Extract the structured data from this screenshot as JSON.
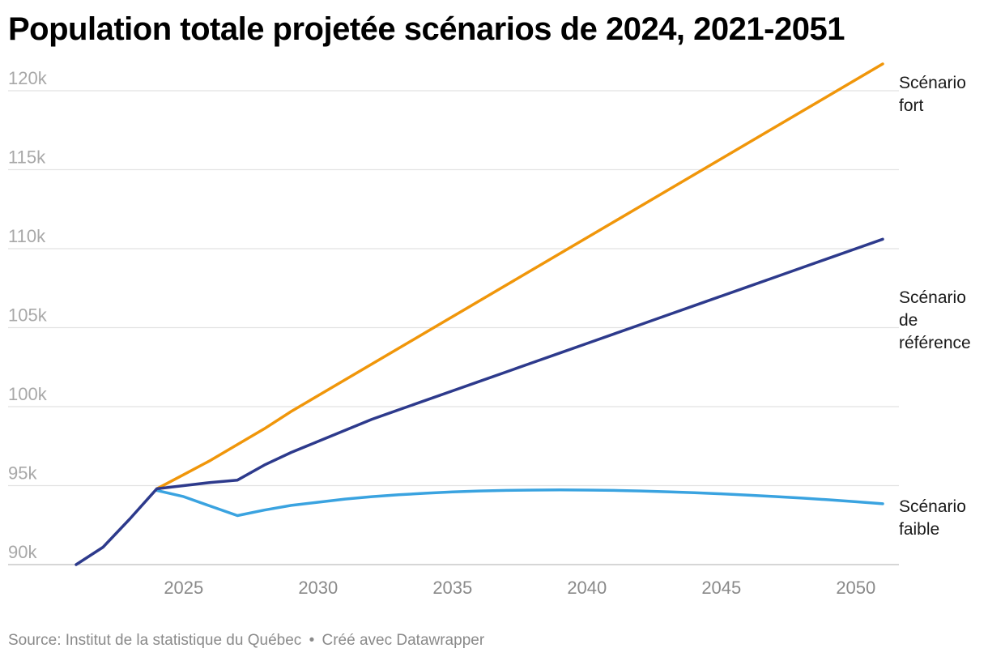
{
  "chart_data": {
    "type": "line",
    "title": "Population totale projetée scénarios de 2024, 2021-2051",
    "xlabel": "",
    "ylabel": "",
    "xlim": [
      2021,
      2051
    ],
    "ylim": [
      90000,
      120000
    ],
    "x_ticks": [
      2025,
      2030,
      2035,
      2040,
      2045,
      2050
    ],
    "x_tick_labels": [
      "2025",
      "2030",
      "2035",
      "2040",
      "2045",
      "2050"
    ],
    "y_ticks": [
      90000,
      95000,
      100000,
      105000,
      110000,
      115000,
      120000
    ],
    "y_tick_labels": [
      "90k",
      "95k",
      "100k",
      "105k",
      "110k",
      "115k",
      "120k"
    ],
    "grid": true,
    "legend": "direct labels at line ends (right)",
    "series": [
      {
        "name": "Scénario fort",
        "label_lines": [
          "Scénario",
          "fort"
        ],
        "color": "#f0960a",
        "points": [
          [
            2024,
            94800
          ],
          [
            2025,
            95700
          ],
          [
            2026,
            96600
          ],
          [
            2027,
            97600
          ],
          [
            2028,
            98600
          ],
          [
            2029,
            99700
          ],
          [
            2030,
            100700
          ],
          [
            2031,
            101700
          ],
          [
            2032,
            102700
          ],
          [
            2033,
            103700
          ],
          [
            2034,
            104700
          ],
          [
            2035,
            105700
          ],
          [
            2036,
            106700
          ],
          [
            2037,
            107700
          ],
          [
            2038,
            108700
          ],
          [
            2039,
            109700
          ],
          [
            2040,
            110700
          ],
          [
            2041,
            111700
          ],
          [
            2042,
            112700
          ],
          [
            2043,
            113700
          ],
          [
            2044,
            114700
          ],
          [
            2045,
            115700
          ],
          [
            2046,
            116700
          ],
          [
            2047,
            117700
          ],
          [
            2048,
            118700
          ],
          [
            2049,
            119700
          ],
          [
            2050,
            120700
          ],
          [
            2051,
            121700
          ]
        ]
      },
      {
        "name": "Scénario de référence",
        "label_lines": [
          "Scénario",
          "de",
          "référence"
        ],
        "color": "#2d3a8c",
        "points": [
          [
            2021,
            90000
          ],
          [
            2022,
            91100
          ],
          [
            2023,
            92900
          ],
          [
            2024,
            94800
          ],
          [
            2025,
            95000
          ],
          [
            2026,
            95200
          ],
          [
            2027,
            95350
          ],
          [
            2028,
            96300
          ],
          [
            2029,
            97100
          ],
          [
            2030,
            97800
          ],
          [
            2031,
            98500
          ],
          [
            2032,
            99200
          ],
          [
            2033,
            99800
          ],
          [
            2034,
            100400
          ],
          [
            2035,
            101000
          ],
          [
            2036,
            101600
          ],
          [
            2037,
            102200
          ],
          [
            2038,
            102800
          ],
          [
            2039,
            103400
          ],
          [
            2040,
            104000
          ],
          [
            2041,
            104600
          ],
          [
            2042,
            105200
          ],
          [
            2043,
            105800
          ],
          [
            2044,
            106400
          ],
          [
            2045,
            107000
          ],
          [
            2046,
            107600
          ],
          [
            2047,
            108200
          ],
          [
            2048,
            108800
          ],
          [
            2049,
            109400
          ],
          [
            2050,
            110000
          ],
          [
            2051,
            110600
          ]
        ]
      },
      {
        "name": "Scénario faible",
        "label_lines": [
          "Scénario",
          "faible"
        ],
        "color": "#3aa3e0",
        "points": [
          [
            2024,
            94700
          ],
          [
            2025,
            94300
          ],
          [
            2026,
            93700
          ],
          [
            2027,
            93100
          ],
          [
            2028,
            93450
          ],
          [
            2029,
            93750
          ],
          [
            2030,
            93950
          ],
          [
            2031,
            94150
          ],
          [
            2032,
            94300
          ],
          [
            2033,
            94420
          ],
          [
            2034,
            94520
          ],
          [
            2035,
            94600
          ],
          [
            2036,
            94660
          ],
          [
            2037,
            94700
          ],
          [
            2038,
            94720
          ],
          [
            2039,
            94730
          ],
          [
            2040,
            94720
          ],
          [
            2041,
            94700
          ],
          [
            2042,
            94660
          ],
          [
            2043,
            94610
          ],
          [
            2044,
            94550
          ],
          [
            2045,
            94480
          ],
          [
            2046,
            94400
          ],
          [
            2047,
            94310
          ],
          [
            2048,
            94210
          ],
          [
            2049,
            94100
          ],
          [
            2050,
            93980
          ],
          [
            2051,
            93850
          ]
        ]
      }
    ]
  },
  "footer": {
    "source": "Source: Institut de la statistique du Québec",
    "separator": "•",
    "credit": "Créé avec Datawrapper"
  }
}
